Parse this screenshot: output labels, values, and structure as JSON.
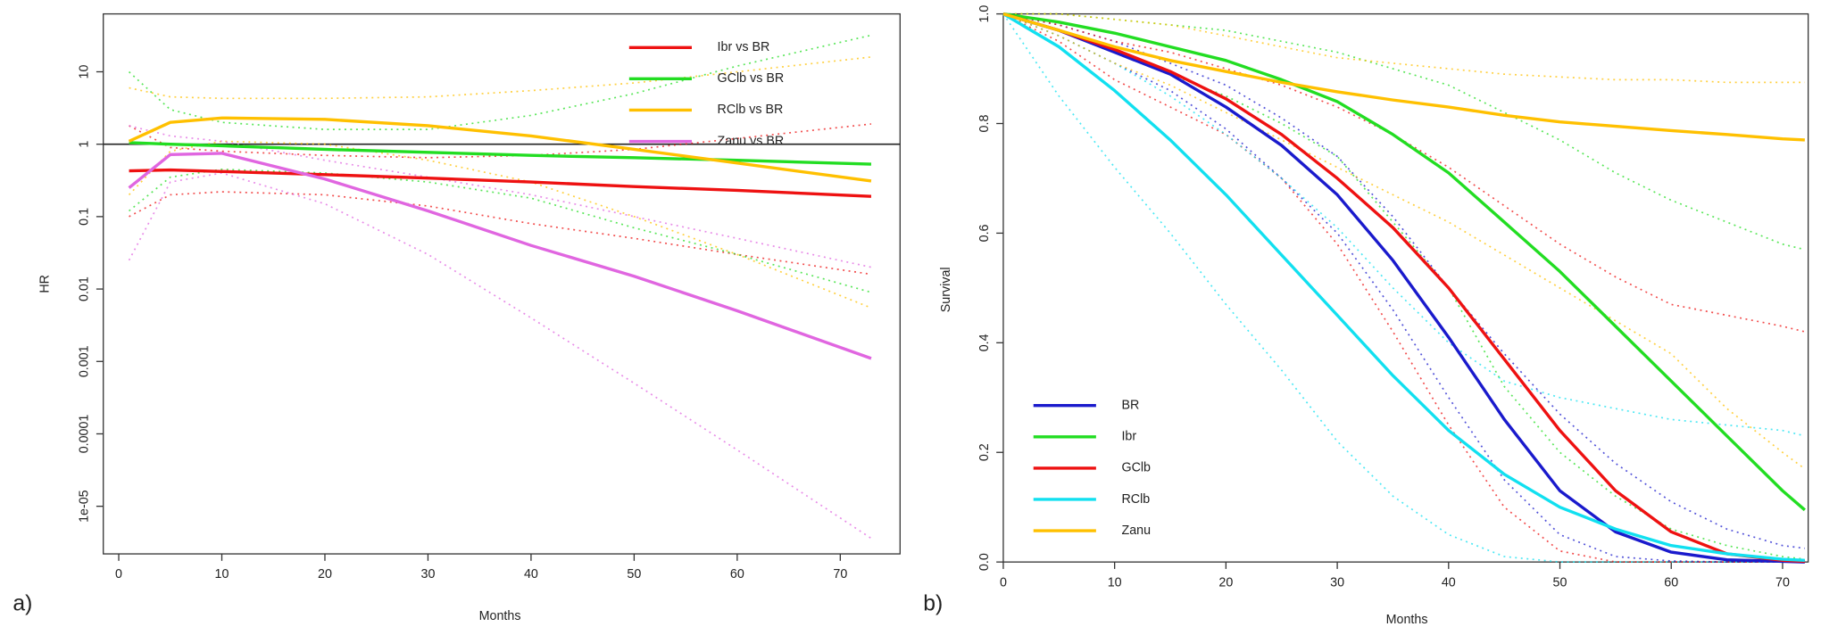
{
  "chart_data": [
    {
      "type": "line",
      "panel_label": "a)",
      "x_label": "Months",
      "y_label": "HR",
      "log_y": true,
      "xlim": [
        -1.5,
        75.8
      ],
      "xticks": [
        0,
        10,
        20,
        30,
        40,
        50,
        60,
        70
      ],
      "ylim": [
        2.2e-06,
        63
      ],
      "yticks": [
        10,
        1,
        0.1,
        0.01,
        0.001,
        0.0001,
        {
          "value": 1e-05,
          "label": "1e-05"
        }
      ],
      "hline": 1,
      "legend": "top-right",
      "x": [
        1,
        5,
        10,
        20,
        30,
        40,
        50,
        60,
        73
      ],
      "series": [
        {
          "name": "Ibr vs BR",
          "color": "#ee1111",
          "values": [
            0.43,
            0.44,
            0.42,
            0.38,
            0.34,
            0.3,
            0.26,
            0.23,
            0.19
          ],
          "lower": [
            0.1,
            0.2,
            0.22,
            0.2,
            0.14,
            0.08,
            0.05,
            0.03,
            0.016
          ],
          "upper": [
            1.8,
            0.9,
            0.8,
            0.7,
            0.65,
            0.7,
            0.85,
            1.2,
            1.9
          ]
        },
        {
          "name": "GClb vs BR",
          "color": "#22dd22",
          "values": [
            1.05,
            1.0,
            0.95,
            0.85,
            0.77,
            0.7,
            0.65,
            0.6,
            0.53
          ],
          "lower": [
            0.12,
            0.35,
            0.45,
            0.4,
            0.3,
            0.18,
            0.07,
            0.03,
            0.009
          ],
          "upper": [
            10,
            3,
            2,
            1.6,
            1.6,
            2.5,
            5,
            12,
            32
          ]
        },
        {
          "name": "RClb vs BR",
          "color": "#ffc000",
          "values": [
            1.1,
            2.0,
            2.3,
            2.2,
            1.8,
            1.3,
            0.85,
            0.55,
            0.31
          ],
          "lower": [
            0.2,
            0.8,
            1.1,
            1.0,
            0.6,
            0.3,
            0.1,
            0.03,
            0.0055
          ],
          "upper": [
            6,
            4.5,
            4.3,
            4.3,
            4.5,
            5.5,
            7,
            10,
            16
          ]
        },
        {
          "name": "Zanu vs BR",
          "color": "#e066e0",
          "values": [
            0.25,
            0.72,
            0.75,
            0.33,
            0.12,
            0.04,
            0.015,
            0.005,
            0.0011
          ],
          "lower": [
            0.025,
            0.3,
            0.4,
            0.15,
            0.03,
            0.004,
            0.0005,
            6e-05,
            3.6e-06
          ],
          "upper": [
            1.8,
            1.3,
            1.1,
            0.6,
            0.35,
            0.2,
            0.1,
            0.05,
            0.02
          ]
        }
      ]
    },
    {
      "type": "line",
      "panel_label": "b)",
      "x_label": "Months",
      "y_label": "Survival",
      "log_y": false,
      "xlim": [
        0,
        72.3
      ],
      "xticks": [
        0,
        10,
        20,
        30,
        40,
        50,
        60,
        70
      ],
      "ylim": [
        0,
        1
      ],
      "yticks": [
        {
          "value": 0,
          "label": "0.0"
        },
        0.2,
        0.4,
        0.6,
        0.8,
        {
          "value": 1,
          "label": "1.0"
        }
      ],
      "legend": "bottom-left",
      "x": [
        0,
        5,
        10,
        15,
        20,
        25,
        30,
        35,
        40,
        45,
        50,
        55,
        60,
        65,
        70,
        72
      ],
      "series": [
        {
          "name": "BR",
          "color": "#1a1acc",
          "values": [
            1,
            0.97,
            0.93,
            0.89,
            0.83,
            0.76,
            0.67,
            0.55,
            0.41,
            0.26,
            0.13,
            0.055,
            0.018,
            0.004,
            0.001,
            0
          ],
          "lower": [
            1,
            0.96,
            0.91,
            0.86,
            0.79,
            0.7,
            0.6,
            0.46,
            0.3,
            0.15,
            0.05,
            0.01,
            0.002,
            0,
            0,
            0
          ],
          "upper": [
            1,
            0.98,
            0.95,
            0.91,
            0.87,
            0.81,
            0.74,
            0.63,
            0.5,
            0.38,
            0.27,
            0.18,
            0.11,
            0.06,
            0.03,
            0.025
          ]
        },
        {
          "name": "Ibr",
          "color": "#22dd22",
          "values": [
            1,
            0.985,
            0.965,
            0.94,
            0.915,
            0.88,
            0.84,
            0.78,
            0.71,
            0.62,
            0.53,
            0.43,
            0.33,
            0.23,
            0.13,
            0.095
          ],
          "lower": [
            1,
            0.97,
            0.93,
            0.89,
            0.85,
            0.8,
            0.74,
            0.62,
            0.5,
            0.32,
            0.2,
            0.12,
            0.06,
            0.03,
            0.01,
            0.005
          ],
          "upper": [
            1,
            1,
            0.99,
            0.98,
            0.97,
            0.95,
            0.93,
            0.9,
            0.87,
            0.82,
            0.77,
            0.71,
            0.66,
            0.62,
            0.58,
            0.57
          ]
        },
        {
          "name": "GClb",
          "color": "#ee1111",
          "values": [
            1,
            0.97,
            0.935,
            0.895,
            0.845,
            0.78,
            0.7,
            0.61,
            0.5,
            0.37,
            0.24,
            0.13,
            0.055,
            0.015,
            0.003,
            0.001
          ],
          "lower": [
            1,
            0.95,
            0.88,
            0.83,
            0.78,
            0.7,
            0.58,
            0.42,
            0.25,
            0.1,
            0.02,
            0,
            0,
            0,
            0,
            0
          ],
          "upper": [
            1,
            0.98,
            0.95,
            0.93,
            0.9,
            0.87,
            0.83,
            0.78,
            0.72,
            0.65,
            0.58,
            0.52,
            0.47,
            0.45,
            0.43,
            0.42
          ]
        },
        {
          "name": "RClb",
          "color": "#11e0f0",
          "values": [
            1,
            0.94,
            0.86,
            0.77,
            0.67,
            0.56,
            0.45,
            0.34,
            0.24,
            0.16,
            0.1,
            0.06,
            0.03,
            0.015,
            0.005,
            0.003
          ],
          "lower": [
            1,
            0.85,
            0.72,
            0.6,
            0.47,
            0.35,
            0.22,
            0.12,
            0.05,
            0.01,
            0,
            0,
            0,
            0,
            0,
            0
          ],
          "upper": [
            1,
            0.96,
            0.91,
            0.85,
            0.78,
            0.7,
            0.61,
            0.5,
            0.4,
            0.33,
            0.3,
            0.28,
            0.26,
            0.25,
            0.24,
            0.23
          ]
        },
        {
          "name": "Zanu",
          "color": "#ffc000",
          "values": [
            1,
            0.97,
            0.94,
            0.915,
            0.895,
            0.875,
            0.858,
            0.843,
            0.83,
            0.815,
            0.803,
            0.795,
            0.787,
            0.78,
            0.772,
            0.77
          ],
          "lower": [
            1,
            0.96,
            0.91,
            0.87,
            0.82,
            0.77,
            0.72,
            0.67,
            0.62,
            0.56,
            0.5,
            0.44,
            0.38,
            0.28,
            0.2,
            0.17
          ],
          "upper": [
            1,
            1,
            0.99,
            0.98,
            0.96,
            0.94,
            0.92,
            0.91,
            0.9,
            0.89,
            0.885,
            0.88,
            0.88,
            0.875,
            0.875,
            0.875
          ]
        }
      ]
    }
  ]
}
